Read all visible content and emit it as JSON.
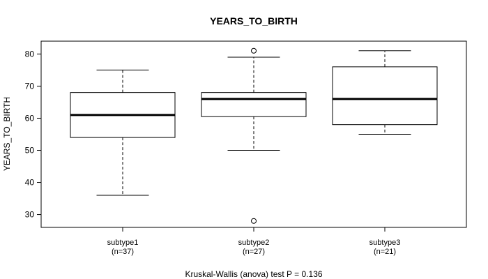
{
  "chart_data": {
    "type": "boxplot",
    "title": "YEARS_TO_BIRTH",
    "ylabel": "YEARS_TO_BIRTH",
    "xlabel": "Kruskal-Wallis (anova) test P = 0.136",
    "ylim": [
      26,
      84
    ],
    "yticks": [
      30,
      40,
      50,
      60,
      70,
      80
    ],
    "groups": [
      {
        "label": "subtype1",
        "n_label": "(n=37)",
        "whisker_low": 36,
        "q1": 54,
        "median": 61,
        "q3": 68,
        "whisker_high": 75,
        "outliers": []
      },
      {
        "label": "subtype2",
        "n_label": "(n=27)",
        "whisker_low": 50,
        "q1": 60.5,
        "median": 66,
        "q3": 68,
        "whisker_high": 79,
        "outliers": [
          28,
          81
        ]
      },
      {
        "label": "subtype3",
        "n_label": "(n=21)",
        "whisker_low": 55,
        "q1": 58,
        "median": 66,
        "q3": 76,
        "whisker_high": 81,
        "outliers": []
      }
    ]
  }
}
